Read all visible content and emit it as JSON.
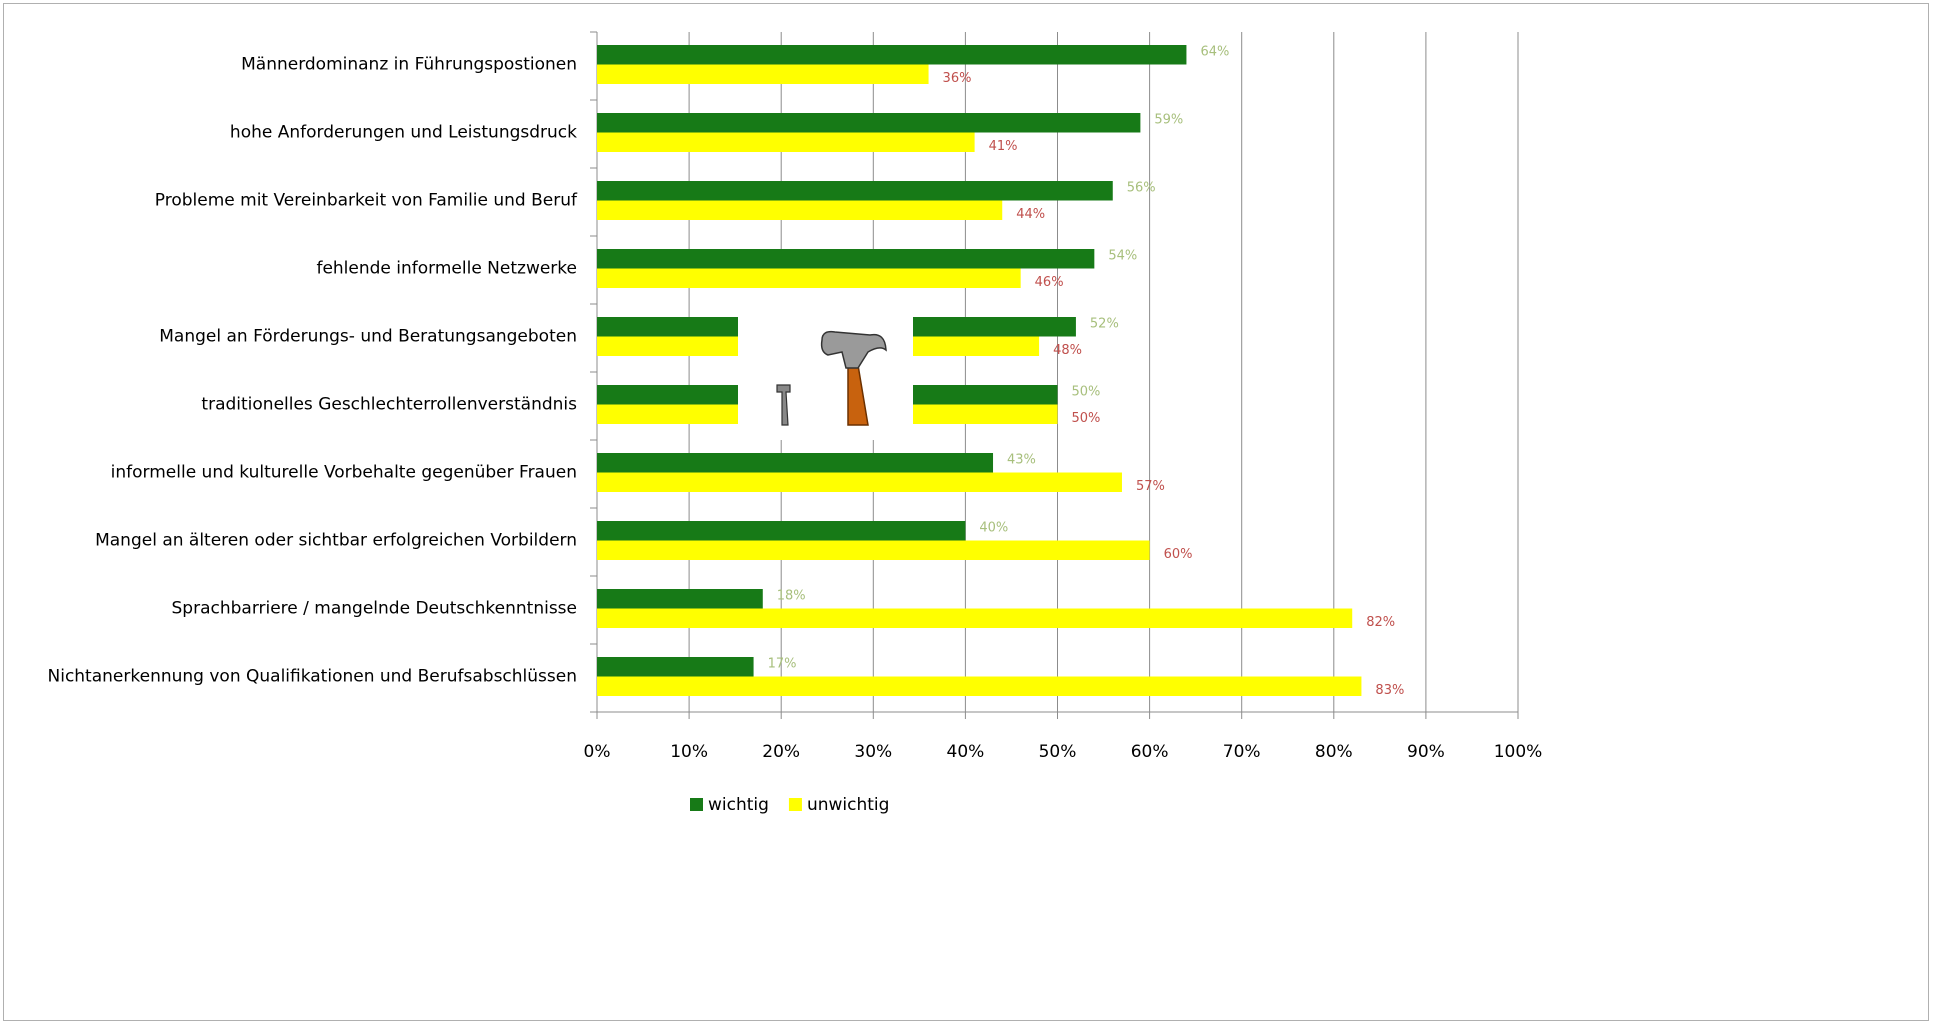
{
  "chart_data": {
    "type": "bar",
    "orientation": "horizontal",
    "categories": [
      "Männerdominanz in Führungspostionen",
      "hohe Anforderungen und Leistungsdruck",
      "Probleme mit Vereinbarkeit von Familie und Beruf",
      "fehlende informelle Netzwerke",
      "Mangel an Förderungs- und Beratungsangeboten",
      "traditionelles Geschlechterrollenverständnis",
      "informelle und kulturelle Vorbehalte gegenüber Frauen",
      "Mangel an älteren oder sichtbar erfolgreichen Vorbildern",
      "Sprachbarriere / mangelnde Deutschkenntnisse",
      "Nichtanerkennung von Qualifikationen und Berufsabschlüssen"
    ],
    "series": [
      {
        "name": "wichtig",
        "color": "#177a17",
        "label_color": "#a7bf7c",
        "values": [
          64,
          59,
          56,
          54,
          52,
          50,
          43,
          40,
          18,
          17
        ],
        "value_labels": [
          "64%",
          "59%",
          "56%",
          "54%",
          "52%",
          "50%",
          "43%",
          "40%",
          "18%",
          "17%"
        ]
      },
      {
        "name": "unwichtig",
        "color": "#ffff00",
        "label_color": "#c0504d",
        "values": [
          36,
          41,
          44,
          46,
          48,
          50,
          57,
          60,
          82,
          83
        ],
        "value_labels": [
          "36%",
          "41%",
          "44%",
          "46%",
          "48%",
          "50%",
          "57%",
          "60%",
          "82%",
          "83%"
        ]
      }
    ],
    "xlim": [
      0,
      100
    ],
    "xticks": [
      {
        "value": 0,
        "label": "0%"
      },
      {
        "value": 10,
        "label": "10%"
      },
      {
        "value": 20,
        "label": "20%"
      },
      {
        "value": 30,
        "label": "30%"
      },
      {
        "value": 40,
        "label": "40%"
      },
      {
        "value": 50,
        "label": "50%"
      },
      {
        "value": 60,
        "label": "60%"
      },
      {
        "value": 70,
        "label": "70%"
      },
      {
        "value": 80,
        "label": "80%"
      },
      {
        "value": 90,
        "label": "90%"
      },
      {
        "value": 100,
        "label": "100%"
      }
    ],
    "grid": true,
    "legend": "bottom"
  }
}
